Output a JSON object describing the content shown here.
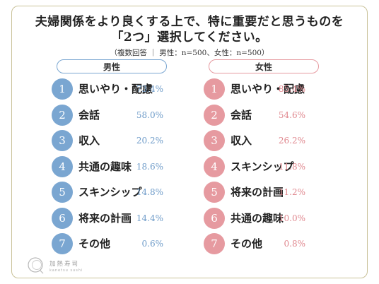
{
  "title_line1": "夫婦関係をより良くする上で、特に重要だと思うものを",
  "title_line2": "「2つ」選択してください。",
  "subtitle": "（複数回答 ｜ 男性：n=500、女性：n=500）",
  "logo": {
    "name": "加熱寿司",
    "sub": "kanetsu sushi"
  },
  "colors": {
    "male": "#7aa6d1",
    "female": "#e69aa0"
  },
  "chart_data": [
    {
      "type": "table",
      "title": "男性",
      "rows": [
        {
          "rank": "1",
          "label": "思いやり・配慮",
          "value": "73.4%"
        },
        {
          "rank": "2",
          "label": "会話",
          "value": "58.0%"
        },
        {
          "rank": "3",
          "label": "収入",
          "value": "20.2%"
        },
        {
          "rank": "4",
          "label": "共通の趣味",
          "value": "18.6%"
        },
        {
          "rank": "5",
          "label": "スキンシップ",
          "value": "14.8%"
        },
        {
          "rank": "6",
          "label": "将来の計画",
          "value": "14.4%"
        },
        {
          "rank": "7",
          "label": "その他",
          "value": "0.6%"
        }
      ]
    },
    {
      "type": "table",
      "title": "女性",
      "rows": [
        {
          "rank": "1",
          "label": "思いやり・配慮",
          "value": "85.4%"
        },
        {
          "rank": "2",
          "label": "会話",
          "value": "54.6%"
        },
        {
          "rank": "3",
          "label": "収入",
          "value": "26.2%"
        },
        {
          "rank": "4",
          "label": "スキンシップ",
          "value": "11.8%"
        },
        {
          "rank": "5",
          "label": "将来の計画",
          "value": "11.2%"
        },
        {
          "rank": "6",
          "label": "共通の趣味",
          "value": "10.0%"
        },
        {
          "rank": "7",
          "label": "その他",
          "value": "0.8%"
        }
      ]
    }
  ]
}
